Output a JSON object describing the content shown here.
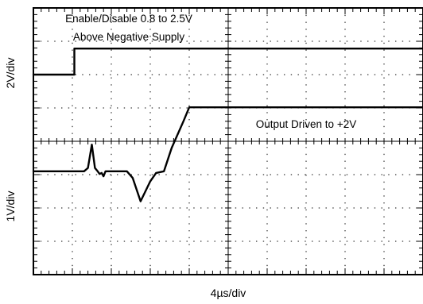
{
  "chart_data": {
    "type": "line",
    "title": "",
    "xlabel": "4µs/div",
    "ylabels": [
      "2V/div",
      "1V/div"
    ],
    "grid": true,
    "grid_divisions": {
      "x": 10,
      "y": 8
    },
    "xlim_div": [
      0,
      10
    ],
    "ylim_div": [
      0,
      8
    ],
    "annotations": [
      {
        "name": "enable-annotation",
        "lines": [
          "Enable/Disable 0.8 to 2.5V",
          "Above Negative Supply"
        ]
      },
      {
        "name": "output-annotation",
        "lines": [
          "Output Driven to +2V"
        ]
      }
    ],
    "series": [
      {
        "key": "enable",
        "points_div": [
          [
            0,
            6.0
          ],
          [
            1.05,
            6.0
          ],
          [
            1.05,
            6.78
          ],
          [
            10,
            6.78
          ]
        ]
      },
      {
        "key": "output",
        "points_div": [
          [
            0,
            3.1
          ],
          [
            1.3,
            3.1
          ],
          [
            1.4,
            3.2
          ],
          [
            1.5,
            3.9
          ],
          [
            1.58,
            3.2
          ],
          [
            1.65,
            3.1
          ],
          [
            1.7,
            3.02
          ],
          [
            1.75,
            3.05
          ],
          [
            1.8,
            2.95
          ],
          [
            1.85,
            3.1
          ],
          [
            2.4,
            3.1
          ],
          [
            2.55,
            2.9
          ],
          [
            2.75,
            2.2
          ],
          [
            3.0,
            2.8
          ],
          [
            3.15,
            3.05
          ],
          [
            3.35,
            3.1
          ],
          [
            3.55,
            3.8
          ],
          [
            3.85,
            4.6
          ],
          [
            4.0,
            5.02
          ],
          [
            10,
            5.02
          ]
        ]
      }
    ]
  }
}
